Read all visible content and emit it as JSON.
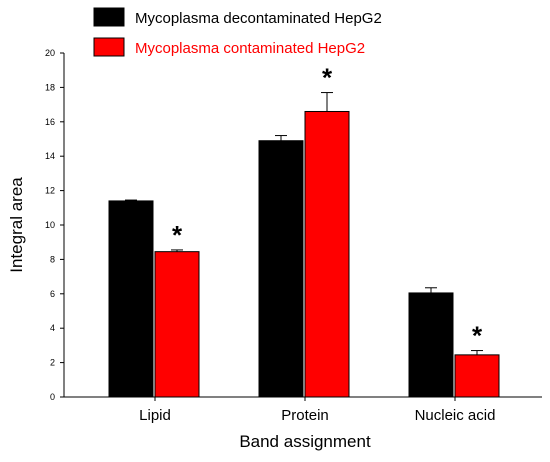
{
  "chart_data": {
    "type": "bar",
    "title": "",
    "xlabel": "Band assignment",
    "ylabel": "Integral area",
    "ylim": [
      0,
      20
    ],
    "yticks": [
      0,
      2,
      4,
      6,
      8,
      10,
      12,
      14,
      16,
      18,
      20
    ],
    "categories": [
      "Lipid",
      "Protein",
      "Nucleic acid"
    ],
    "series": [
      {
        "name": "Mycoplasma decontaminated HepG2",
        "color": "#000000",
        "values": [
          11.4,
          14.9,
          6.05
        ],
        "errors": [
          0.05,
          0.3,
          0.3
        ],
        "significance": [
          "",
          "",
          ""
        ]
      },
      {
        "name": "Mycoplasma contaminated HepG2",
        "color": "#ff0000",
        "values": [
          8.45,
          16.6,
          2.45
        ],
        "errors": [
          0.1,
          1.1,
          0.25
        ],
        "significance": [
          "*",
          "*",
          "*"
        ]
      }
    ],
    "legend_position": "top-left"
  }
}
